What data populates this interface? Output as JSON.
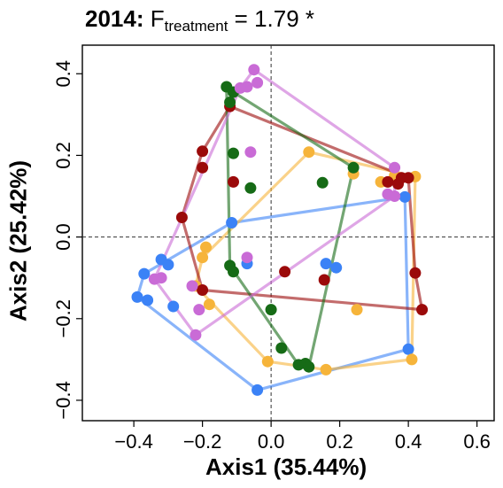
{
  "chart_data": {
    "type": "scatter",
    "title_bold": "2014:",
    "title_f": "F",
    "title_sub": "treatment",
    "title_rest": "= 1.79 *",
    "xlabel": "Axis1 (35.44%)",
    "ylabel": "Axis2 (25.42%)",
    "xlim": [
      -0.55,
      0.65
    ],
    "ylim": [
      -0.45,
      0.47
    ],
    "xticks": [
      -0.4,
      -0.2,
      0.0,
      0.2,
      0.4,
      0.6
    ],
    "xtick_labels": [
      "−0.4",
      "−0.2",
      "0.0",
      "0.2",
      "0.4",
      "0.6"
    ],
    "yticks": [
      -0.4,
      -0.2,
      0.0,
      0.2,
      0.4
    ],
    "ytick_labels": [
      "−0.4",
      "−0.2",
      "0.0",
      "0.2",
      "0.4"
    ],
    "reference_lines": {
      "x": 0,
      "y": 0,
      "style": "dashed"
    },
    "grid": false,
    "legend": "none",
    "hulls_drawn": true,
    "series": [
      {
        "color": "#3b82f6",
        "points": [
          [
            -0.39,
            -0.147
          ],
          [
            -0.37,
            -0.09
          ],
          [
            -0.36,
            -0.155
          ],
          [
            -0.32,
            -0.055
          ],
          [
            -0.3,
            -0.068
          ],
          [
            -0.285,
            -0.17
          ],
          [
            -0.115,
            0.035
          ],
          [
            -0.07,
            -0.065
          ],
          [
            0.16,
            -0.065
          ],
          [
            0.19,
            -0.075
          ],
          [
            0.39,
            0.098
          ],
          [
            0.4,
            -0.275
          ],
          [
            -0.04,
            -0.375
          ]
        ],
        "hull": [
          [
            -0.39,
            -0.147
          ],
          [
            -0.37,
            -0.09
          ],
          [
            -0.115,
            0.035
          ],
          [
            0.39,
            0.098
          ],
          [
            0.4,
            -0.275
          ],
          [
            -0.04,
            -0.375
          ]
        ]
      },
      {
        "color": "#f6b43a",
        "points": [
          [
            -0.2,
            -0.05
          ],
          [
            -0.19,
            -0.025
          ],
          [
            -0.22,
            -0.12
          ],
          [
            -0.18,
            -0.165
          ],
          [
            0.11,
            0.208
          ],
          [
            0.24,
            0.155
          ],
          [
            0.32,
            0.135
          ],
          [
            0.36,
            0.15
          ],
          [
            0.42,
            0.148
          ],
          [
            0.41,
            -0.3
          ],
          [
            0.25,
            -0.178
          ],
          [
            0.16,
            -0.325
          ],
          [
            -0.01,
            -0.305
          ]
        ],
        "hull": [
          [
            -0.22,
            -0.12
          ],
          [
            -0.2,
            -0.05
          ],
          [
            0.11,
            0.208
          ],
          [
            0.42,
            0.148
          ],
          [
            0.41,
            -0.3
          ],
          [
            0.16,
            -0.325
          ],
          [
            -0.01,
            -0.305
          ]
        ]
      },
      {
        "color": "#9b0a0a",
        "points": [
          [
            -0.12,
            0.32
          ],
          [
            -0.2,
            0.21
          ],
          [
            -0.2,
            0.17
          ],
          [
            -0.11,
            0.135
          ],
          [
            -0.26,
            0.048
          ],
          [
            -0.2,
            -0.13
          ],
          [
            0.04,
            -0.085
          ],
          [
            0.155,
            -0.105
          ],
          [
            0.34,
            0.135
          ],
          [
            0.37,
            0.13
          ],
          [
            0.38,
            0.145
          ],
          [
            0.4,
            0.145
          ],
          [
            0.42,
            -0.088
          ],
          [
            0.44,
            -0.178
          ]
        ],
        "hull": [
          [
            -0.12,
            0.32
          ],
          [
            0.4,
            0.145
          ],
          [
            0.42,
            -0.088
          ],
          [
            0.44,
            -0.178
          ],
          [
            -0.2,
            -0.13
          ],
          [
            -0.26,
            0.048
          ],
          [
            -0.2,
            0.21
          ]
        ]
      },
      {
        "color": "#166b16",
        "points": [
          [
            -0.13,
            0.368
          ],
          [
            -0.11,
            0.355
          ],
          [
            -0.12,
            0.33
          ],
          [
            -0.11,
            0.205
          ],
          [
            -0.06,
            0.12
          ],
          [
            -0.12,
            -0.07
          ],
          [
            -0.11,
            -0.085
          ],
          [
            0.15,
            0.133
          ],
          [
            0.24,
            0.17
          ],
          [
            0.0,
            -0.178
          ],
          [
            0.03,
            -0.272
          ],
          [
            0.08,
            -0.313
          ],
          [
            0.1,
            -0.31
          ],
          [
            0.11,
            -0.318
          ]
        ],
        "hull": [
          [
            -0.13,
            0.368
          ],
          [
            -0.11,
            0.355
          ],
          [
            0.24,
            0.17
          ],
          [
            0.11,
            -0.318
          ],
          [
            0.08,
            -0.313
          ],
          [
            -0.12,
            -0.07
          ]
        ]
      },
      {
        "color": "#c96bd6",
        "points": [
          [
            -0.05,
            0.41
          ],
          [
            -0.04,
            0.378
          ],
          [
            -0.07,
            0.368
          ],
          [
            -0.09,
            0.365
          ],
          [
            -0.06,
            0.208
          ],
          [
            -0.07,
            -0.05
          ],
          [
            -0.23,
            -0.12
          ],
          [
            -0.34,
            -0.103
          ],
          [
            -0.32,
            -0.1
          ],
          [
            -0.21,
            -0.178
          ],
          [
            -0.22,
            -0.24
          ],
          [
            0.34,
            0.105
          ],
          [
            0.36,
            0.1
          ],
          [
            0.36,
            0.17
          ]
        ],
        "hull": [
          [
            -0.05,
            0.41
          ],
          [
            0.36,
            0.17
          ],
          [
            0.36,
            0.1
          ],
          [
            -0.22,
            -0.24
          ],
          [
            -0.34,
            -0.103
          ],
          [
            -0.09,
            0.365
          ]
        ]
      }
    ]
  }
}
